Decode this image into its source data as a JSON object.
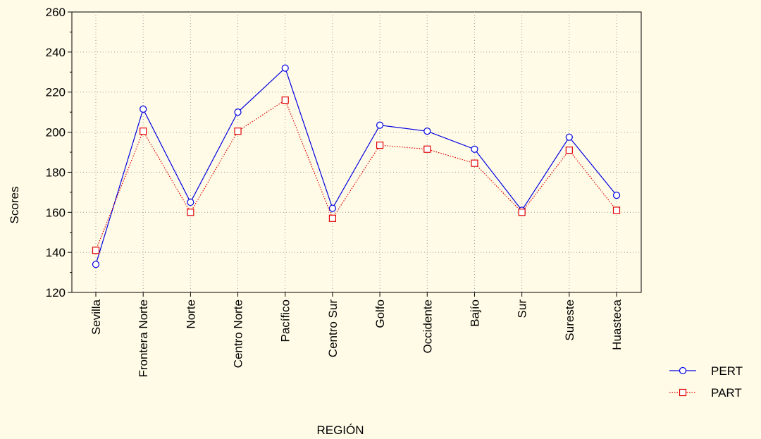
{
  "chart_data": {
    "type": "line",
    "categories": [
      "Sevilla",
      "Frontera Norte",
      "Norte",
      "Centro Norte",
      "Pacífico",
      "Centro Sur",
      "Golfo",
      "Occidente",
      "Bajío",
      "Sur",
      "Sureste",
      "Huasteca"
    ],
    "series": [
      {
        "name": "PERT",
        "values": [
          134,
          211.5,
          165,
          210,
          232,
          162,
          203.5,
          200.5,
          191.5,
          161,
          197.5,
          168.5
        ],
        "color": "#0000e0",
        "line_style": "solid",
        "marker": "circle"
      },
      {
        "name": "PART",
        "values": [
          141,
          200.5,
          160,
          200.5,
          216,
          157,
          193.5,
          191.5,
          184.5,
          160,
          191,
          161
        ],
        "color": "#e00000",
        "line_style": "dotted",
        "marker": "square"
      }
    ],
    "xlabel": "REGIÓN",
    "ylabel": "Scores",
    "ylim": [
      120,
      260
    ],
    "yticks": [
      120,
      140,
      160,
      180,
      200,
      220,
      240,
      260
    ],
    "grid": true,
    "legend_position": "bottom-right",
    "background_color": "#fffbe7"
  }
}
